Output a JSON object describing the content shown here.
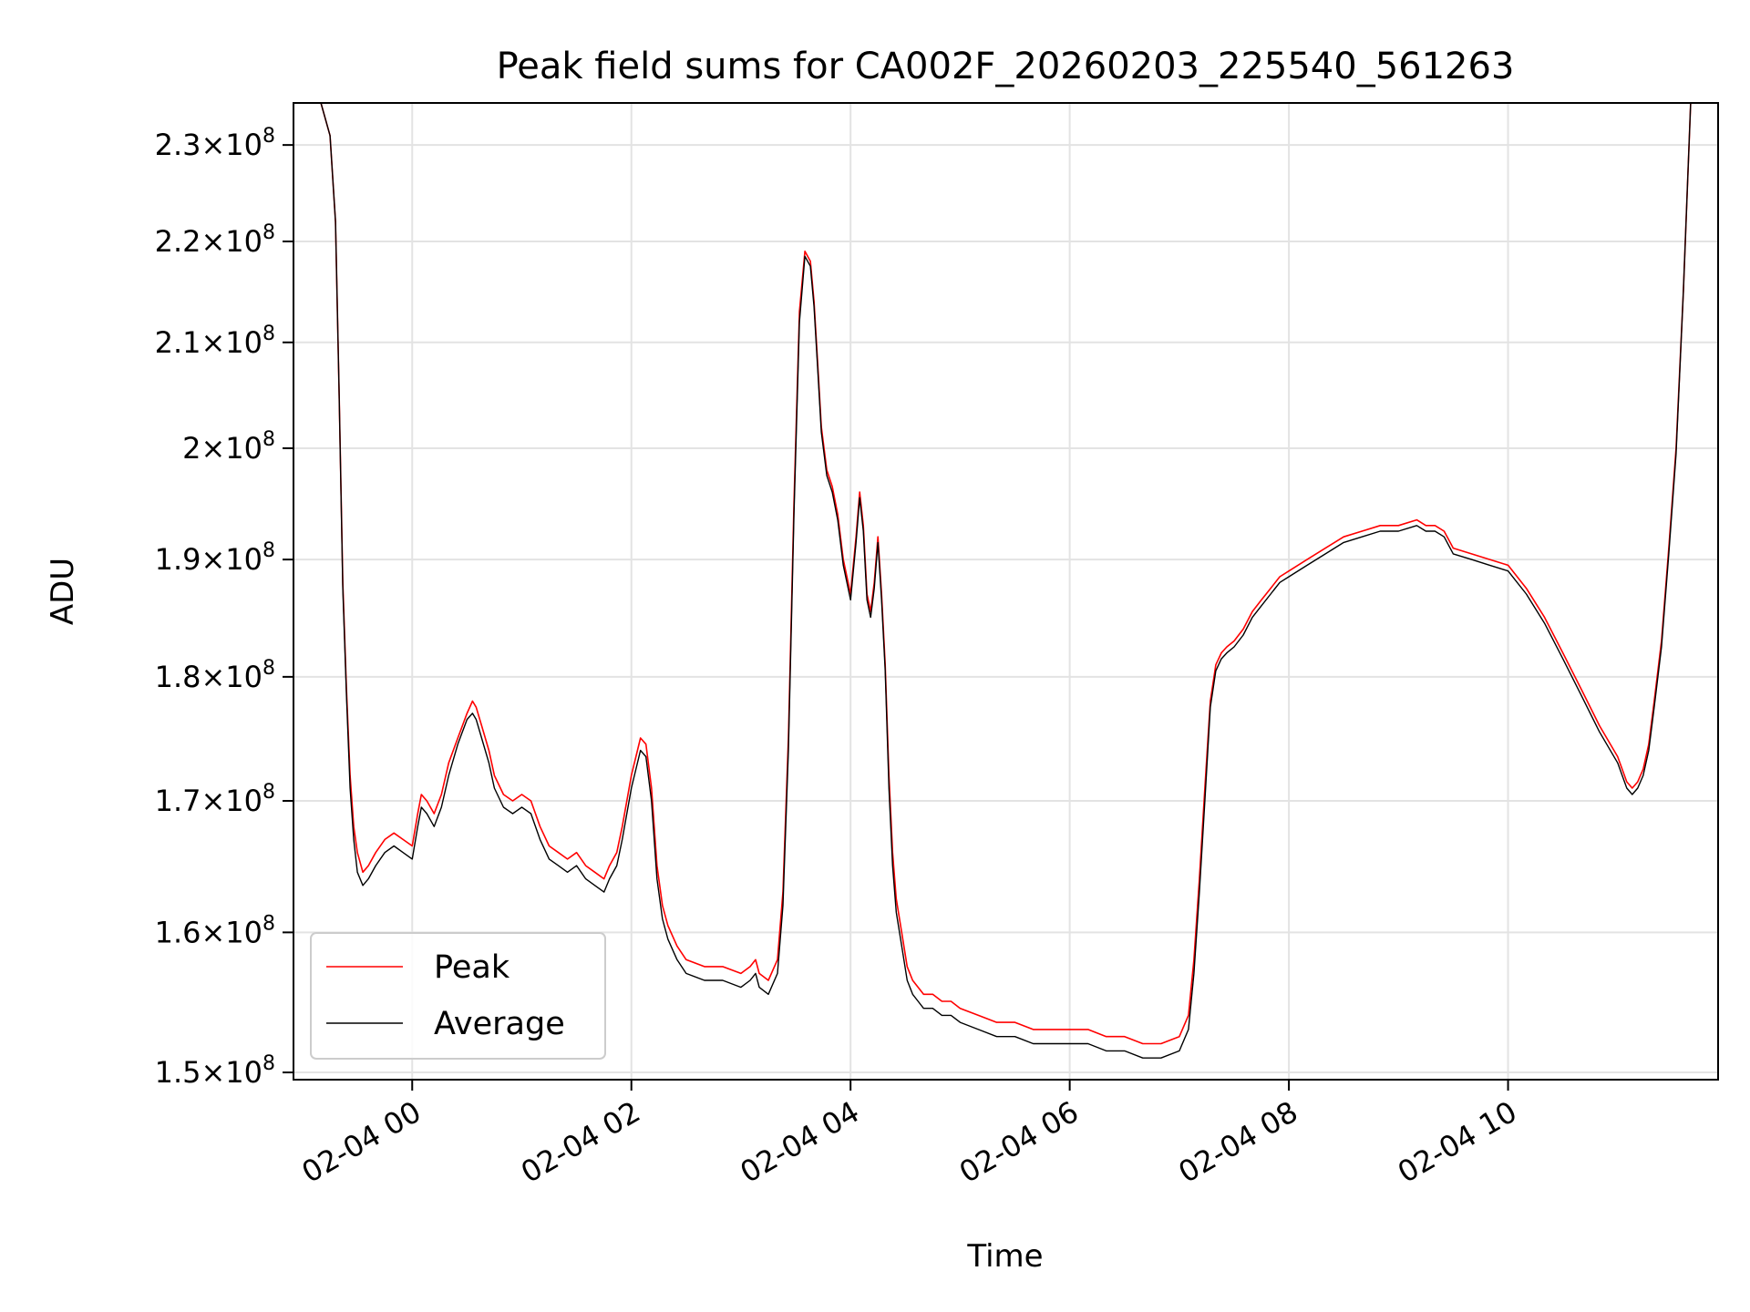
{
  "chart_data": {
    "type": "line",
    "title": "Peak field sums for CA002F_20260203_225540_561263",
    "xlabel": "Time",
    "ylabel": "ADU",
    "y_scale": "log",
    "xlim": [
      "2026-02-03 22:55",
      "2026-02-04 11:55"
    ],
    "ylim": [
      149500000,
      234500000
    ],
    "grid": true,
    "legend_position": "lower-left",
    "x_ticks": [
      {
        "value": "2026-02-04 00:00",
        "label": "02-04 00"
      },
      {
        "value": "2026-02-04 02:00",
        "label": "02-04 02"
      },
      {
        "value": "2026-02-04 04:00",
        "label": "02-04 04"
      },
      {
        "value": "2026-02-04 06:00",
        "label": "02-04 06"
      },
      {
        "value": "2026-02-04 08:00",
        "label": "02-04 08"
      },
      {
        "value": "2026-02-04 10:00",
        "label": "02-04 10"
      }
    ],
    "y_ticks": [
      {
        "value": 150000000,
        "label": "1.5",
        "exp": "8"
      },
      {
        "value": 160000000,
        "label": "1.6",
        "exp": "8"
      },
      {
        "value": 170000000,
        "label": "1.7",
        "exp": "8"
      },
      {
        "value": 180000000,
        "label": "1.8",
        "exp": "8"
      },
      {
        "value": 190000000,
        "label": "1.9",
        "exp": "8"
      },
      {
        "value": 200000000,
        "label": "2",
        "exp": "8"
      },
      {
        "value": 210000000,
        "label": "2.1",
        "exp": "8"
      },
      {
        "value": 220000000,
        "label": "2.2",
        "exp": "8"
      },
      {
        "value": 230000000,
        "label": "2.3",
        "exp": "8"
      }
    ],
    "series": [
      {
        "name": "Peak",
        "color": "#ff0000",
        "x": [
          "2026-02-03 22:55",
          "2026-02-03 23:10",
          "2026-02-03 23:15",
          "2026-02-03 23:18",
          "2026-02-03 23:20",
          "2026-02-03 23:22",
          "2026-02-03 23:24",
          "2026-02-03 23:26",
          "2026-02-03 23:28",
          "2026-02-03 23:30",
          "2026-02-03 23:33",
          "2026-02-03 23:36",
          "2026-02-03 23:40",
          "2026-02-03 23:45",
          "2026-02-03 23:50",
          "2026-02-03 23:55",
          "2026-02-04 00:00",
          "2026-02-04 00:03",
          "2026-02-04 00:05",
          "2026-02-04 00:08",
          "2026-02-04 00:12",
          "2026-02-04 00:16",
          "2026-02-04 00:20",
          "2026-02-04 00:25",
          "2026-02-04 00:30",
          "2026-02-04 00:33",
          "2026-02-04 00:35",
          "2026-02-04 00:38",
          "2026-02-04 00:42",
          "2026-02-04 00:45",
          "2026-02-04 00:50",
          "2026-02-04 00:55",
          "2026-02-04 01:00",
          "2026-02-04 01:05",
          "2026-02-04 01:10",
          "2026-02-04 01:15",
          "2026-02-04 01:20",
          "2026-02-04 01:25",
          "2026-02-04 01:30",
          "2026-02-04 01:35",
          "2026-02-04 01:40",
          "2026-02-04 01:45",
          "2026-02-04 01:48",
          "2026-02-04 01:52",
          "2026-02-04 01:55",
          "2026-02-04 02:00",
          "2026-02-04 02:05",
          "2026-02-04 02:08",
          "2026-02-04 02:11",
          "2026-02-04 02:14",
          "2026-02-04 02:17",
          "2026-02-04 02:20",
          "2026-02-04 02:25",
          "2026-02-04 02:30",
          "2026-02-04 02:40",
          "2026-02-04 02:50",
          "2026-02-04 03:00",
          "2026-02-04 03:05",
          "2026-02-04 03:08",
          "2026-02-04 03:10",
          "2026-02-04 03:15",
          "2026-02-04 03:20",
          "2026-02-04 03:23",
          "2026-02-04 03:26",
          "2026-02-04 03:29",
          "2026-02-04 03:32",
          "2026-02-04 03:35",
          "2026-02-04 03:38",
          "2026-02-04 03:40",
          "2026-02-04 03:42",
          "2026-02-04 03:44",
          "2026-02-04 03:47",
          "2026-02-04 03:50",
          "2026-02-04 03:53",
          "2026-02-04 03:56",
          "2026-02-04 04:00",
          "2026-02-04 04:03",
          "2026-02-04 04:05",
          "2026-02-04 04:07",
          "2026-02-04 04:09",
          "2026-02-04 04:11",
          "2026-02-04 04:13",
          "2026-02-04 04:15",
          "2026-02-04 04:17",
          "2026-02-04 04:19",
          "2026-02-04 04:21",
          "2026-02-04 04:23",
          "2026-02-04 04:25",
          "2026-02-04 04:28",
          "2026-02-04 04:31",
          "2026-02-04 04:34",
          "2026-02-04 04:37",
          "2026-02-04 04:40",
          "2026-02-04 04:45",
          "2026-02-04 04:50",
          "2026-02-04 04:55",
          "2026-02-04 05:00",
          "2026-02-04 05:10",
          "2026-02-04 05:20",
          "2026-02-04 05:30",
          "2026-02-04 05:40",
          "2026-02-04 05:50",
          "2026-02-04 06:00",
          "2026-02-04 06:10",
          "2026-02-04 06:20",
          "2026-02-04 06:30",
          "2026-02-04 06:40",
          "2026-02-04 06:50",
          "2026-02-04 07:00",
          "2026-02-04 07:05",
          "2026-02-04 07:08",
          "2026-02-04 07:11",
          "2026-02-04 07:14",
          "2026-02-04 07:17",
          "2026-02-04 07:20",
          "2026-02-04 07:23",
          "2026-02-04 07:26",
          "2026-02-04 07:30",
          "2026-02-04 07:35",
          "2026-02-04 07:40",
          "2026-02-04 07:45",
          "2026-02-04 07:50",
          "2026-02-04 07:55",
          "2026-02-04 08:00",
          "2026-02-04 08:10",
          "2026-02-04 08:20",
          "2026-02-04 08:30",
          "2026-02-04 08:40",
          "2026-02-04 08:50",
          "2026-02-04 09:00",
          "2026-02-04 09:10",
          "2026-02-04 09:15",
          "2026-02-04 09:20",
          "2026-02-04 09:25",
          "2026-02-04 09:30",
          "2026-02-04 09:40",
          "2026-02-04 09:50",
          "2026-02-04 10:00",
          "2026-02-04 10:10",
          "2026-02-04 10:20",
          "2026-02-04 10:30",
          "2026-02-04 10:40",
          "2026-02-04 10:50",
          "2026-02-04 11:00",
          "2026-02-04 11:05",
          "2026-02-04 11:08",
          "2026-02-04 11:11",
          "2026-02-04 11:14",
          "2026-02-04 11:17",
          "2026-02-04 11:20",
          "2026-02-04 11:24",
          "2026-02-04 11:28",
          "2026-02-04 11:32",
          "2026-02-04 11:36",
          "2026-02-04 11:40",
          "2026-02-04 11:55"
        ],
        "values": [
          234500000,
          234500000,
          231000000,
          222000000,
          205000000,
          188000000,
          179000000,
          172000000,
          168000000,
          166000000,
          164500000,
          165000000,
          166000000,
          167000000,
          167500000,
          167000000,
          166500000,
          169000000,
          170500000,
          170000000,
          169000000,
          170500000,
          173000000,
          175000000,
          177000000,
          178000000,
          177500000,
          176000000,
          174000000,
          172000000,
          170500000,
          170000000,
          170500000,
          170000000,
          168000000,
          166500000,
          166000000,
          165500000,
          166000000,
          165000000,
          164500000,
          164000000,
          165000000,
          166000000,
          168000000,
          172000000,
          175000000,
          174500000,
          171000000,
          165000000,
          162000000,
          160500000,
          159000000,
          158000000,
          157500000,
          157500000,
          157000000,
          157500000,
          158000000,
          157000000,
          156500000,
          158000000,
          163000000,
          175000000,
          195000000,
          213000000,
          219000000,
          218000000,
          214000000,
          208000000,
          202000000,
          198000000,
          196500000,
          194000000,
          190000000,
          187000000,
          192000000,
          196000000,
          193000000,
          187000000,
          185500000,
          188000000,
          192000000,
          187000000,
          181000000,
          172000000,
          166000000,
          162500000,
          160000000,
          157500000,
          156500000,
          156000000,
          155500000,
          155500000,
          155000000,
          155000000,
          154500000,
          154000000,
          153500000,
          153500000,
          153000000,
          153000000,
          153000000,
          153000000,
          152500000,
          152500000,
          152000000,
          152000000,
          152500000,
          154000000,
          158000000,
          164000000,
          171000000,
          178000000,
          181000000,
          182000000,
          182500000,
          183000000,
          184000000,
          185500000,
          186500000,
          187500000,
          188500000,
          189000000,
          190000000,
          191000000,
          192000000,
          192500000,
          193000000,
          193000000,
          193500000,
          193000000,
          193000000,
          192500000,
          191000000,
          190500000,
          190000000,
          189500000,
          187500000,
          185000000,
          182000000,
          179000000,
          176000000,
          173500000,
          171500000,
          171000000,
          171500000,
          172500000,
          174500000,
          178000000,
          183000000,
          191000000,
          200000000,
          215000000,
          234500000,
          234500000
        ]
      },
      {
        "name": "Average",
        "color": "#000000",
        "x": [
          "2026-02-03 22:55",
          "2026-02-03 23:10",
          "2026-02-03 23:15",
          "2026-02-03 23:18",
          "2026-02-03 23:20",
          "2026-02-03 23:22",
          "2026-02-03 23:24",
          "2026-02-03 23:26",
          "2026-02-03 23:28",
          "2026-02-03 23:30",
          "2026-02-03 23:33",
          "2026-02-03 23:36",
          "2026-02-03 23:40",
          "2026-02-03 23:45",
          "2026-02-03 23:50",
          "2026-02-03 23:55",
          "2026-02-04 00:00",
          "2026-02-04 00:03",
          "2026-02-04 00:05",
          "2026-02-04 00:08",
          "2026-02-04 00:12",
          "2026-02-04 00:16",
          "2026-02-04 00:20",
          "2026-02-04 00:25",
          "2026-02-04 00:30",
          "2026-02-04 00:33",
          "2026-02-04 00:35",
          "2026-02-04 00:38",
          "2026-02-04 00:42",
          "2026-02-04 00:45",
          "2026-02-04 00:50",
          "2026-02-04 00:55",
          "2026-02-04 01:00",
          "2026-02-04 01:05",
          "2026-02-04 01:10",
          "2026-02-04 01:15",
          "2026-02-04 01:20",
          "2026-02-04 01:25",
          "2026-02-04 01:30",
          "2026-02-04 01:35",
          "2026-02-04 01:40",
          "2026-02-04 01:45",
          "2026-02-04 01:48",
          "2026-02-04 01:52",
          "2026-02-04 01:55",
          "2026-02-04 02:00",
          "2026-02-04 02:05",
          "2026-02-04 02:08",
          "2026-02-04 02:11",
          "2026-02-04 02:14",
          "2026-02-04 02:17",
          "2026-02-04 02:20",
          "2026-02-04 02:25",
          "2026-02-04 02:30",
          "2026-02-04 02:40",
          "2026-02-04 02:50",
          "2026-02-04 03:00",
          "2026-02-04 03:05",
          "2026-02-04 03:08",
          "2026-02-04 03:10",
          "2026-02-04 03:15",
          "2026-02-04 03:20",
          "2026-02-04 03:23",
          "2026-02-04 03:26",
          "2026-02-04 03:29",
          "2026-02-04 03:32",
          "2026-02-04 03:35",
          "2026-02-04 03:38",
          "2026-02-04 03:40",
          "2026-02-04 03:42",
          "2026-02-04 03:44",
          "2026-02-04 03:47",
          "2026-02-04 03:50",
          "2026-02-04 03:53",
          "2026-02-04 03:56",
          "2026-02-04 04:00",
          "2026-02-04 04:03",
          "2026-02-04 04:05",
          "2026-02-04 04:07",
          "2026-02-04 04:09",
          "2026-02-04 04:11",
          "2026-02-04 04:13",
          "2026-02-04 04:15",
          "2026-02-04 04:17",
          "2026-02-04 04:19",
          "2026-02-04 04:21",
          "2026-02-04 04:23",
          "2026-02-04 04:25",
          "2026-02-04 04:28",
          "2026-02-04 04:31",
          "2026-02-04 04:34",
          "2026-02-04 04:37",
          "2026-02-04 04:40",
          "2026-02-04 04:45",
          "2026-02-04 04:50",
          "2026-02-04 04:55",
          "2026-02-04 05:00",
          "2026-02-04 05:10",
          "2026-02-04 05:20",
          "2026-02-04 05:30",
          "2026-02-04 05:40",
          "2026-02-04 05:50",
          "2026-02-04 06:00",
          "2026-02-04 06:10",
          "2026-02-04 06:20",
          "2026-02-04 06:30",
          "2026-02-04 06:40",
          "2026-02-04 06:50",
          "2026-02-04 07:00",
          "2026-02-04 07:05",
          "2026-02-04 07:08",
          "2026-02-04 07:11",
          "2026-02-04 07:14",
          "2026-02-04 07:17",
          "2026-02-04 07:20",
          "2026-02-04 07:23",
          "2026-02-04 07:26",
          "2026-02-04 07:30",
          "2026-02-04 07:35",
          "2026-02-04 07:40",
          "2026-02-04 07:45",
          "2026-02-04 07:50",
          "2026-02-04 07:55",
          "2026-02-04 08:00",
          "2026-02-04 08:10",
          "2026-02-04 08:20",
          "2026-02-04 08:30",
          "2026-02-04 08:40",
          "2026-02-04 08:50",
          "2026-02-04 09:00",
          "2026-02-04 09:10",
          "2026-02-04 09:15",
          "2026-02-04 09:20",
          "2026-02-04 09:25",
          "2026-02-04 09:30",
          "2026-02-04 09:40",
          "2026-02-04 09:50",
          "2026-02-04 10:00",
          "2026-02-04 10:10",
          "2026-02-04 10:20",
          "2026-02-04 10:30",
          "2026-02-04 10:40",
          "2026-02-04 10:50",
          "2026-02-04 11:00",
          "2026-02-04 11:05",
          "2026-02-04 11:08",
          "2026-02-04 11:11",
          "2026-02-04 11:14",
          "2026-02-04 11:17",
          "2026-02-04 11:20",
          "2026-02-04 11:24",
          "2026-02-04 11:28",
          "2026-02-04 11:32",
          "2026-02-04 11:36",
          "2026-02-04 11:40",
          "2026-02-04 11:55"
        ],
        "values": [
          234500000,
          234500000,
          231000000,
          222000000,
          205000000,
          187500000,
          178500000,
          171000000,
          167000000,
          164500000,
          163500000,
          164000000,
          165000000,
          166000000,
          166500000,
          166000000,
          165500000,
          168000000,
          169500000,
          169000000,
          168000000,
          169500000,
          172000000,
          174500000,
          176500000,
          177000000,
          176500000,
          175000000,
          173000000,
          171000000,
          169500000,
          169000000,
          169500000,
          169000000,
          167000000,
          165500000,
          165000000,
          164500000,
          165000000,
          164000000,
          163500000,
          163000000,
          164000000,
          165000000,
          167000000,
          171000000,
          174000000,
          173500000,
          170000000,
          164000000,
          161000000,
          159500000,
          158000000,
          157000000,
          156500000,
          156500000,
          156000000,
          156500000,
          157000000,
          156000000,
          155500000,
          157000000,
          162000000,
          174000000,
          194000000,
          212000000,
          218500000,
          217500000,
          213500000,
          207500000,
          201500000,
          197500000,
          196000000,
          193500000,
          189500000,
          186500000,
          191500000,
          195500000,
          192500000,
          186500000,
          185000000,
          187500000,
          191500000,
          186500000,
          180500000,
          171000000,
          165000000,
          161500000,
          159000000,
          156500000,
          155500000,
          155000000,
          154500000,
          154500000,
          154000000,
          154000000,
          153500000,
          153000000,
          152500000,
          152500000,
          152000000,
          152000000,
          152000000,
          152000000,
          151500000,
          151500000,
          151000000,
          151000000,
          151500000,
          153000000,
          157000000,
          163000000,
          170000000,
          177500000,
          180500000,
          181500000,
          182000000,
          182500000,
          183500000,
          185000000,
          186000000,
          187000000,
          188000000,
          188500000,
          189500000,
          190500000,
          191500000,
          192000000,
          192500000,
          192500000,
          193000000,
          192500000,
          192500000,
          192000000,
          190500000,
          190000000,
          189500000,
          189000000,
          187000000,
          184500000,
          181500000,
          178500000,
          175500000,
          173000000,
          171000000,
          170500000,
          171000000,
          172000000,
          174000000,
          177500000,
          182500000,
          190500000,
          199500000,
          215000000,
          234500000,
          234500000
        ]
      }
    ]
  }
}
